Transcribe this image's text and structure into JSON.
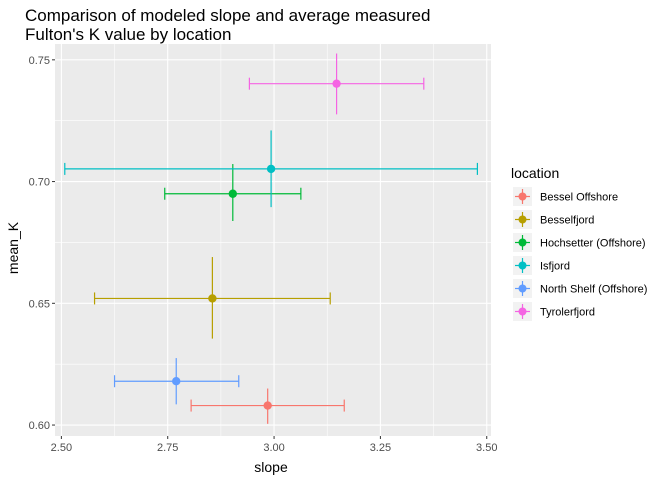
{
  "chart_data": {
    "type": "scatter",
    "title_lines": [
      "Comparison of modeled slope and average measured",
      "Fulton's K value by location"
    ],
    "xlabel": "slope",
    "ylabel": "mean_K",
    "xlim": [
      2.485,
      3.51
    ],
    "ylim": [
      0.5955,
      0.7565
    ],
    "x_ticks": [
      2.5,
      2.75,
      3.0,
      3.25,
      3.5
    ],
    "x_tick_labels": [
      "2.50",
      "2.75",
      "3.00",
      "3.25",
      "3.50"
    ],
    "y_ticks": [
      0.6,
      0.65,
      0.7,
      0.75
    ],
    "y_tick_labels": [
      "0.60",
      "0.65",
      "0.70",
      "0.75"
    ],
    "grid": true,
    "legend": {
      "title": "location",
      "position": "right"
    },
    "series": [
      {
        "name": "Bessel Offshore",
        "color": "#F8766D",
        "x": 2.985,
        "y": 0.608,
        "xmin": 2.805,
        "xmax": 3.165,
        "ymin": 0.6005,
        "ymax": 0.615
      },
      {
        "name": "Besselfjord",
        "color": "#B79F00",
        "x": 2.855,
        "y": 0.652,
        "xmin": 2.578,
        "xmax": 3.132,
        "ymin": 0.6355,
        "ymax": 0.669
      },
      {
        "name": "Hochsetter (Offshore)",
        "color": "#00BA38",
        "x": 2.903,
        "y": 0.695,
        "xmin": 2.743,
        "xmax": 3.063,
        "ymin": 0.6838,
        "ymax": 0.7072
      },
      {
        "name": "Isfjord",
        "color": "#00BFC4",
        "x": 2.993,
        "y": 0.7052,
        "xmin": 2.508,
        "xmax": 3.478,
        "ymin": 0.6895,
        "ymax": 0.721
      },
      {
        "name": "North Shelf (Offshore)",
        "color": "#619CFF",
        "x": 2.77,
        "y": 0.618,
        "xmin": 2.625,
        "xmax": 2.917,
        "ymin": 0.6085,
        "ymax": 0.6275
      },
      {
        "name": "Tyrolerfjord",
        "color": "#F564E3",
        "x": 3.147,
        "y": 0.7402,
        "xmin": 2.942,
        "xmax": 3.352,
        "ymin": 0.7276,
        "ymax": 0.7526
      }
    ]
  }
}
